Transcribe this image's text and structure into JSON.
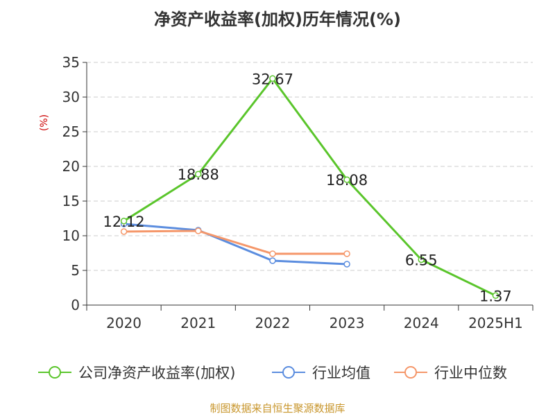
{
  "title": "净资产收益率(加权)历年情况(%)",
  "source": "制图数据来自恒生聚源数据库",
  "chart_data": {
    "type": "line",
    "title": "净资产收益率(加权)历年情况(%)",
    "ylabel": "(%)",
    "xlabel": "",
    "categories": [
      "2020",
      "2021",
      "2022",
      "2023",
      "2024",
      "2025H1"
    ],
    "ylim": [
      0,
      35
    ],
    "yticks": [
      0,
      5,
      10,
      15,
      20,
      25,
      30,
      35
    ],
    "grid": "horizontal dashed",
    "legend_position": "bottom",
    "series": [
      {
        "name": "公司净资产收益率(加权)",
        "color": "#5ac52b",
        "values": [
          12.12,
          18.88,
          32.67,
          18.08,
          6.55,
          1.37
        ],
        "labels": [
          "12.12",
          "18.88",
          "32.67",
          "18.08",
          "6.55",
          "1.37"
        ]
      },
      {
        "name": "行业均值",
        "color": "#5b8ddf",
        "values": [
          11.7,
          10.8,
          6.4,
          5.9,
          null,
          null
        ]
      },
      {
        "name": "行业中位数",
        "color": "#f5976a",
        "values": [
          10.6,
          10.7,
          7.4,
          7.4,
          null,
          null
        ]
      }
    ]
  }
}
